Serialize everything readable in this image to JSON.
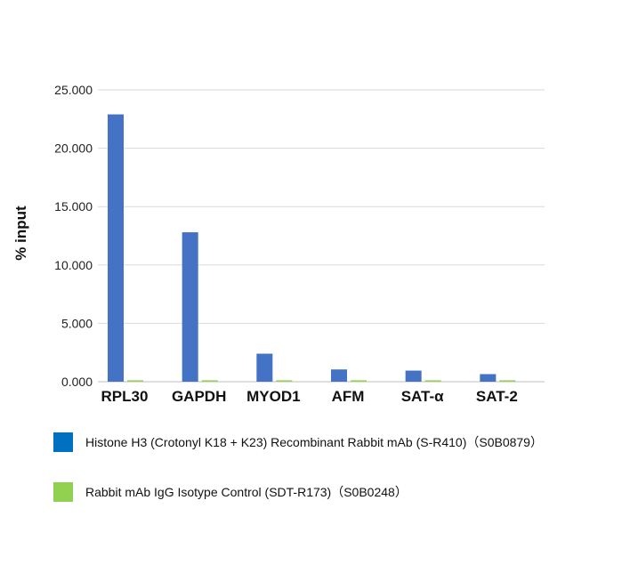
{
  "chart_data": {
    "type": "bar",
    "ylabel": "% input",
    "xlabel": "",
    "categories": [
      "RPL30",
      "GAPDH",
      "MYOD1",
      "AFM",
      "SAT-α",
      "SAT-2"
    ],
    "yticks": [
      "0.000",
      "5.000",
      "10.000",
      "15.000",
      "20.000",
      "25.000"
    ],
    "ylim": [
      0,
      25
    ],
    "grid": true,
    "legend_position": "bottom",
    "series": [
      {
        "name": "Histone H3 (Crotonyl K18 + K23) Recombinant Rabbit mAb (S-R410)（S0B0879）",
        "color": "#4472C4",
        "values": [
          22.9,
          12.8,
          2.4,
          1.05,
          0.95,
          0.65
        ]
      },
      {
        "name": "Rabbit mAb IgG Isotype Control (SDT-R173)（S0B0248）",
        "color": "#92D050",
        "values": [
          0.12,
          0.12,
          0.12,
          0.12,
          0.12,
          0.12
        ]
      }
    ]
  }
}
